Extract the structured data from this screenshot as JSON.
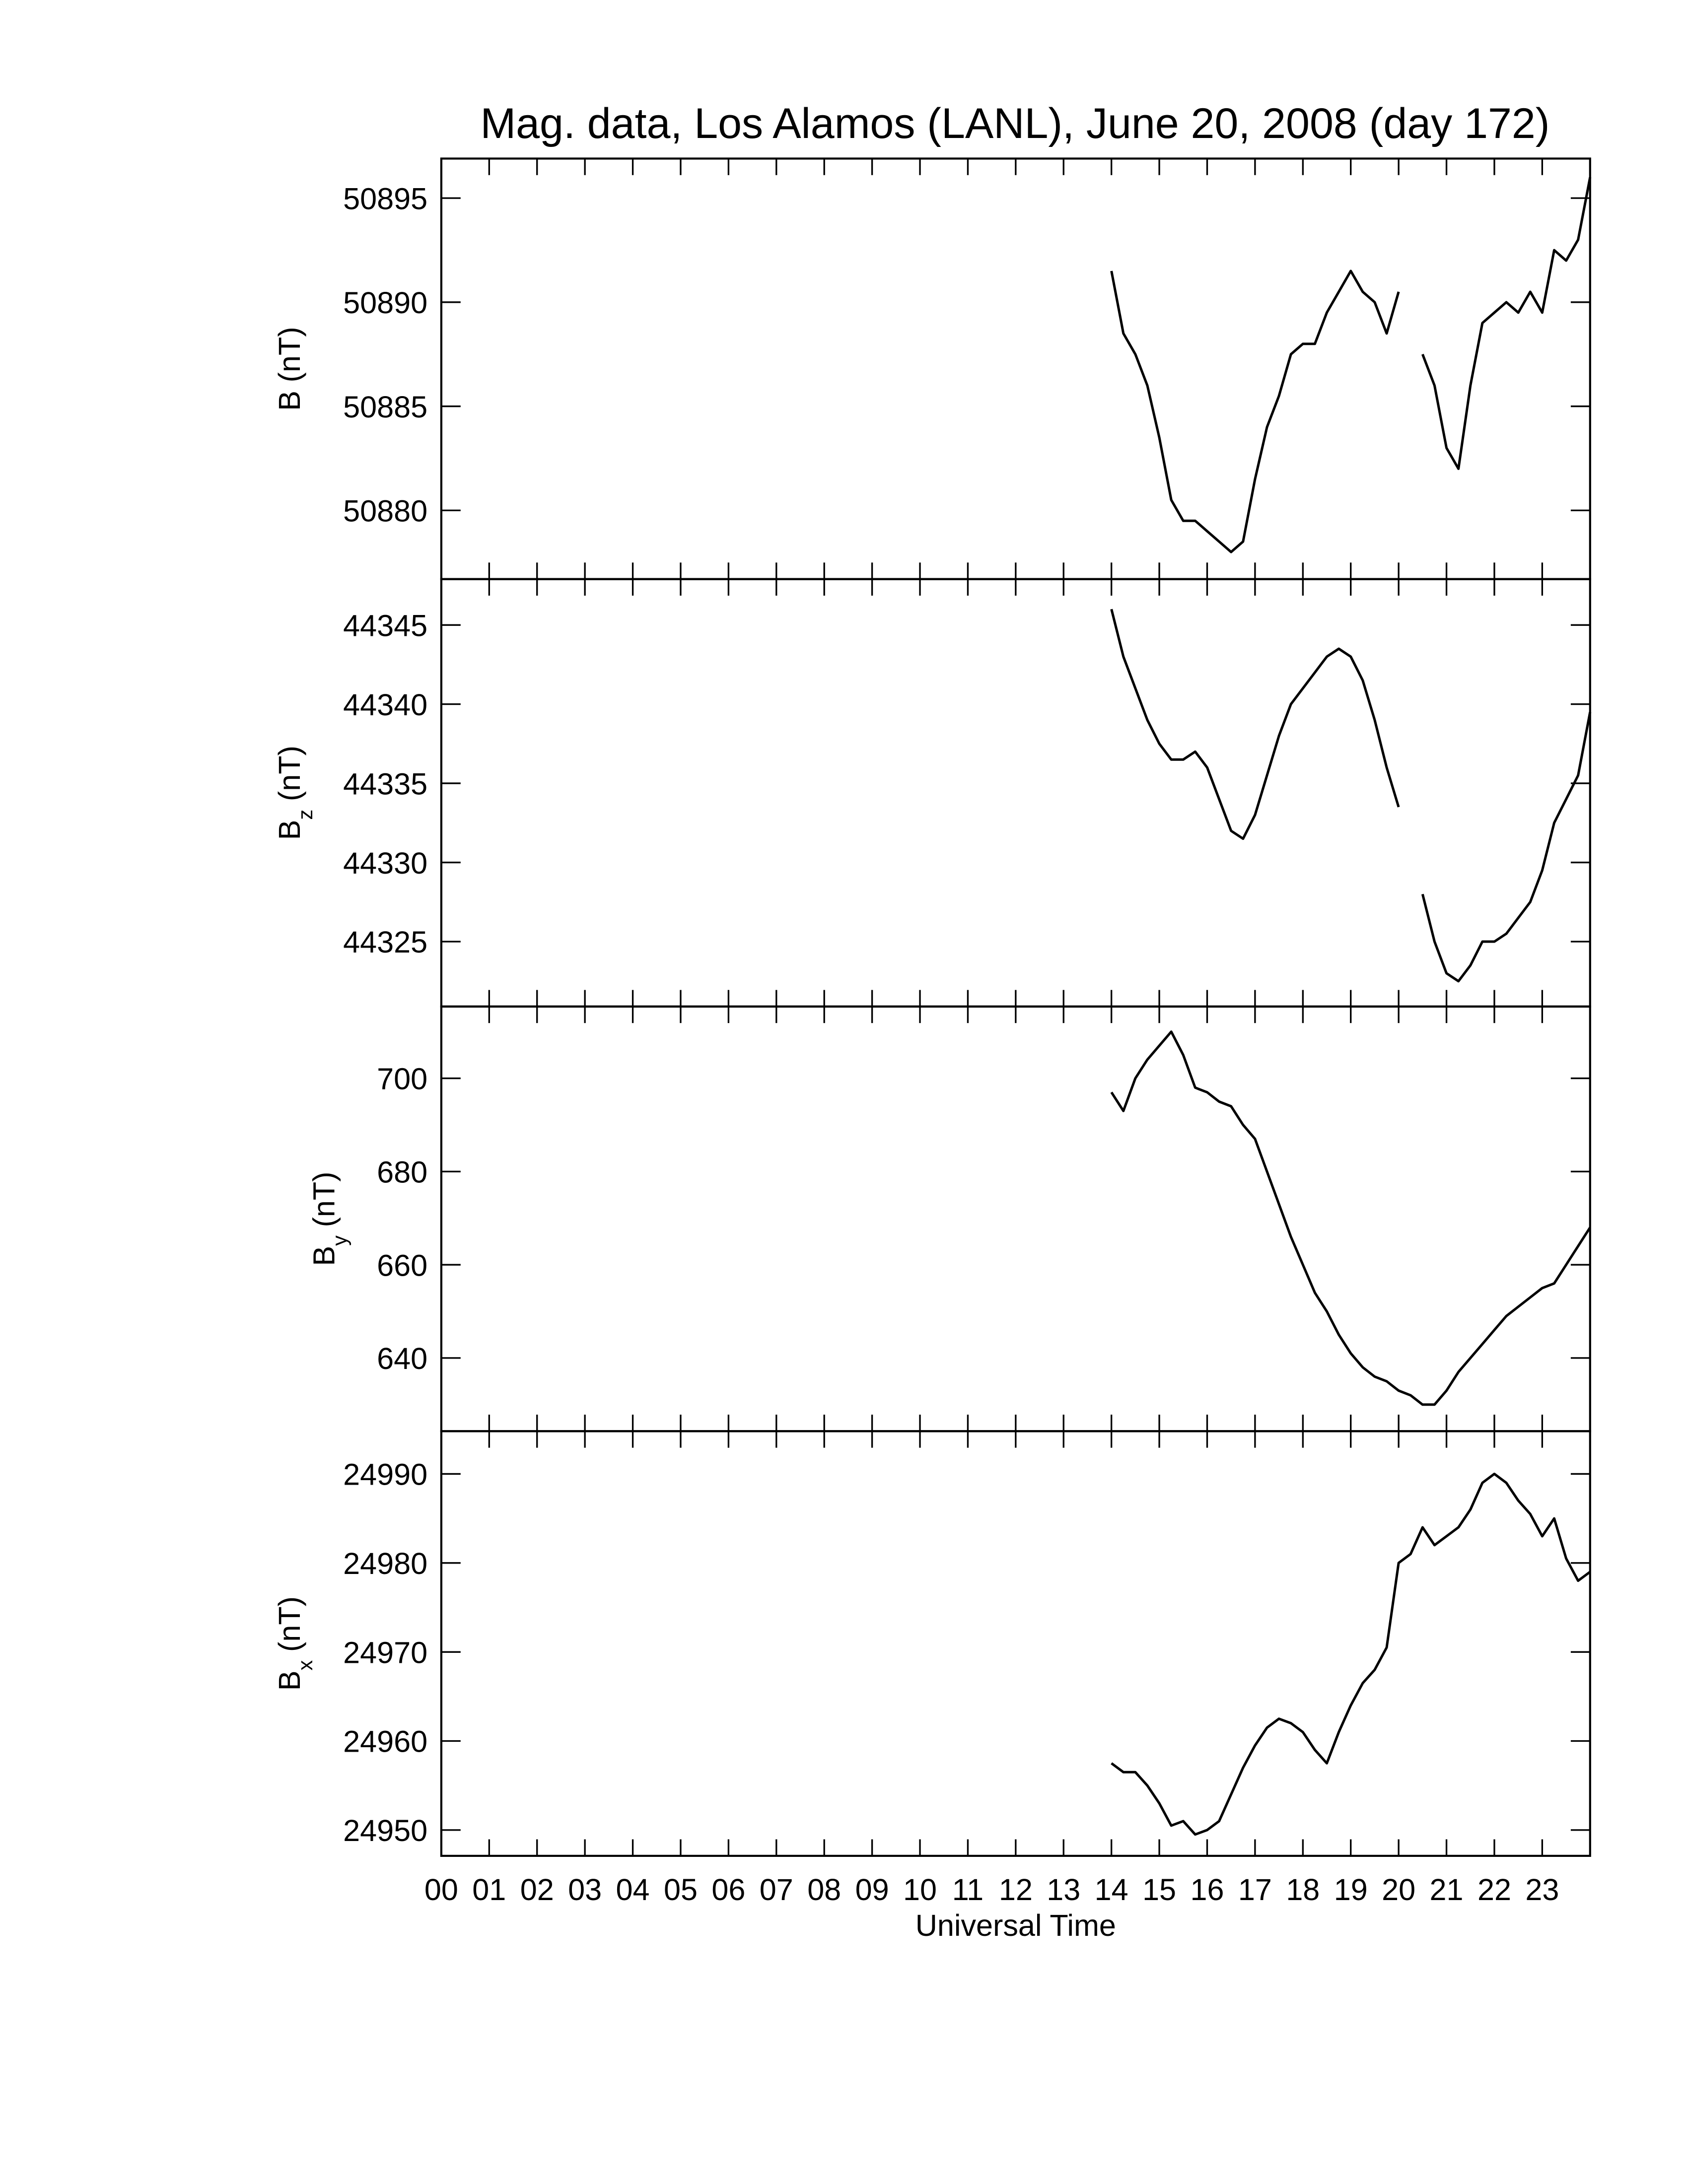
{
  "chart_data": [
    {
      "type": "line",
      "title": "Mag. data, Los Alamos (LANL), June 20, 2008 (day 172)",
      "ylabel": {
        "main": "B",
        "unit": "(nT)"
      },
      "x": [
        14,
        14.25,
        14.5,
        14.75,
        15,
        15.25,
        15.5,
        15.75,
        16,
        16.25,
        16.5,
        16.75,
        17,
        17.25,
        17.5,
        17.75,
        18,
        18.25,
        18.5,
        18.75,
        19,
        19.25,
        19.5,
        19.75,
        20,
        20.25,
        20.5,
        20.75,
        21,
        21.25,
        21.5,
        21.75,
        22,
        22.25,
        22.5,
        22.75,
        23,
        23.25,
        23.5,
        23.75,
        24
      ],
      "values": [
        50891.5,
        50888.5,
        50887.5,
        50886,
        50883.5,
        50880.5,
        50879.5,
        50879.5,
        50879,
        50878.5,
        50878,
        50878.5,
        50881.5,
        50884,
        50885.5,
        50887.5,
        50888,
        50888,
        50889.5,
        50890.5,
        50891.5,
        50890.5,
        50890,
        50888.5,
        50890.5,
        null,
        50887.5,
        50886,
        50883,
        50882,
        50886,
        50889,
        50889.5,
        50890,
        50889.5,
        50890.5,
        50889.5,
        50892.5,
        50892,
        50893,
        50896
      ],
      "color": "#000000",
      "xlim": [
        0,
        24
      ],
      "ylim": [
        50876.7,
        50896.9
      ],
      "yticks": [
        50880,
        50885,
        50890,
        50895
      ]
    },
    {
      "type": "line",
      "ylabel": {
        "main": "B",
        "sub": "z",
        "unit": "(nT)"
      },
      "x": [
        14,
        14.25,
        14.5,
        14.75,
        15,
        15.25,
        15.5,
        15.75,
        16,
        16.25,
        16.5,
        16.75,
        17,
        17.25,
        17.5,
        17.75,
        18,
        18.25,
        18.5,
        18.75,
        19,
        19.25,
        19.5,
        19.75,
        20,
        20.25,
        20.5,
        20.75,
        21,
        21.25,
        21.5,
        21.75,
        22,
        22.25,
        22.5,
        22.75,
        23,
        23.25,
        23.5,
        23.75,
        24
      ],
      "values": [
        44346,
        44343,
        44341,
        44339,
        44337.5,
        44336.5,
        44336.5,
        44337,
        44336,
        44334,
        44332,
        44331.5,
        44333,
        44335.5,
        44338,
        44340,
        44341,
        44342,
        44343,
        44343.5,
        44343,
        44341.5,
        44339,
        44336,
        44333.5,
        null,
        44328,
        44325,
        44323,
        44322.5,
        44323.5,
        44325,
        44325,
        44325.5,
        44326.5,
        44327.5,
        44329.5,
        44332.5,
        44334,
        44335.5,
        44339.5
      ],
      "color": "#000000",
      "xlim": [
        0,
        24
      ],
      "ylim": [
        44320.9,
        44347.9
      ],
      "yticks": [
        44325,
        44330,
        44335,
        44340,
        44345
      ]
    },
    {
      "type": "line",
      "ylabel": {
        "main": "B",
        "sub": "y",
        "unit": "(nT)"
      },
      "x": [
        14,
        14.25,
        14.5,
        14.75,
        15,
        15.25,
        15.5,
        15.75,
        16,
        16.25,
        16.5,
        16.75,
        17,
        17.25,
        17.5,
        17.75,
        18,
        18.25,
        18.5,
        18.75,
        19,
        19.25,
        19.5,
        19.75,
        20,
        20.25,
        20.5,
        20.75,
        21,
        21.25,
        21.5,
        21.75,
        22,
        22.25,
        22.5,
        22.75,
        23,
        23.25,
        23.5,
        23.75,
        24
      ],
      "values": [
        697,
        693,
        700,
        704,
        707,
        710,
        705,
        698,
        697,
        695,
        694,
        690,
        687,
        680,
        673,
        666,
        660,
        654,
        650,
        645,
        641,
        638,
        636,
        635,
        633,
        632,
        630,
        630,
        633,
        637,
        640,
        643,
        646,
        649,
        651,
        653,
        655,
        656,
        660,
        664,
        668
      ],
      "color": "#000000",
      "xlim": [
        0,
        24
      ],
      "ylim": [
        624.3,
        715.4
      ],
      "yticks": [
        640,
        660,
        680,
        700
      ]
    },
    {
      "type": "line",
      "ylabel": {
        "main": "B",
        "sub": "x",
        "unit": "(nT)"
      },
      "xlabel": "Universal Time",
      "x": [
        14,
        14.25,
        14.5,
        14.75,
        15,
        15.25,
        15.5,
        15.75,
        16,
        16.25,
        16.5,
        16.75,
        17,
        17.25,
        17.5,
        17.75,
        18,
        18.25,
        18.5,
        18.75,
        19,
        19.25,
        19.5,
        19.75,
        20,
        20.25,
        20.5,
        20.75,
        21,
        21.25,
        21.5,
        21.75,
        22,
        22.25,
        22.5,
        22.75,
        23,
        23.25,
        23.5,
        23.75,
        24
      ],
      "values": [
        24957.5,
        24956.5,
        24956.5,
        24955,
        24953,
        24950.5,
        24951,
        24949.5,
        24950,
        24951,
        24954,
        24957,
        24959.5,
        24961.5,
        24962.5,
        24962,
        24961,
        24959,
        24957.5,
        24961,
        24964,
        24966.5,
        24968,
        24970.5,
        24980,
        24981,
        24984,
        24982,
        24983,
        24984,
        24986,
        24989,
        24990,
        24989,
        24987,
        24985.5,
        24983,
        24985,
        24980.5,
        24978,
        24979
      ],
      "color": "#000000",
      "xlim": [
        0,
        24
      ],
      "ylim": [
        24947.1,
        24994.8
      ],
      "yticks": [
        24950,
        24960,
        24970,
        24980,
        24990
      ],
      "xticks": [
        {
          "value": 0,
          "label": "00"
        },
        {
          "value": 1,
          "label": "01"
        },
        {
          "value": 2,
          "label": "02"
        },
        {
          "value": 3,
          "label": "03"
        },
        {
          "value": 4,
          "label": "04"
        },
        {
          "value": 5,
          "label": "05"
        },
        {
          "value": 6,
          "label": "06"
        },
        {
          "value": 7,
          "label": "07"
        },
        {
          "value": 8,
          "label": "08"
        },
        {
          "value": 9,
          "label": "09"
        },
        10,
        11,
        12,
        13,
        14,
        15,
        16,
        17,
        18,
        19,
        20,
        21,
        22,
        23
      ]
    }
  ]
}
